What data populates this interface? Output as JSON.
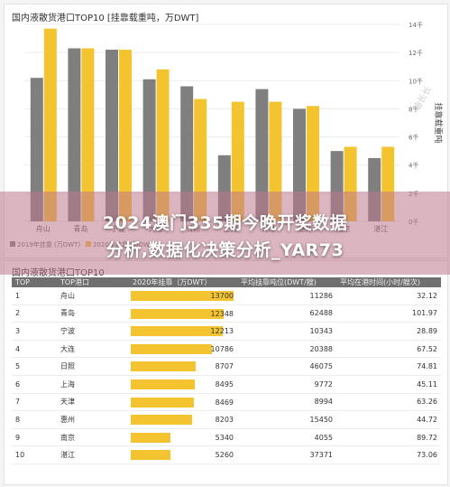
{
  "chart_data": [
    {
      "type": "bar",
      "title": "国内液散货港口TOP10 [挂靠载重吨，万DWT]",
      "categories": [
        "舟山",
        "青岛",
        "宁波",
        "大连",
        "日照",
        "上海",
        "天津",
        "惠州",
        "南京",
        "湛江"
      ],
      "series": [
        {
          "name": "2019年挂靠 (万DWT)",
          "color": "#7f7f7f",
          "values": [
            10.2,
            12.3,
            12.2,
            10.1,
            9.6,
            4.7,
            9.4,
            8.0,
            5.0,
            4.5
          ]
        },
        {
          "name": "2020年挂靠 (万DWT)",
          "color": "#f4c430",
          "values": [
            13.7,
            12.3,
            12.2,
            10.8,
            8.7,
            8.5,
            8.5,
            8.2,
            5.3,
            5.3
          ]
        }
      ],
      "yticks": [
        "0千",
        "2千",
        "4千",
        "6千",
        "8千",
        "10千",
        "12千",
        "14千"
      ],
      "ylim": [
        0,
        14
      ],
      "ylabel": "挂靠载重吨",
      "legend": "bottom-left"
    },
    {
      "type": "table",
      "title": "国内液散货港口TOP10",
      "columns": [
        "TOP",
        "TOP港口",
        "2020年挂靠（万DWT）",
        "平均挂靠吨位(DWT/艘)",
        "平均在港时间(小时/艘次)"
      ],
      "bar_max": 13700,
      "rows": [
        {
          "rank": "1",
          "port": "舟山",
          "dwt": 13700,
          "dwt_label": "13700",
          "avg_tonnage": "11286",
          "avg_hours": "32.12"
        },
        {
          "rank": "2",
          "port": "青岛",
          "dwt": 12348,
          "dwt_label": "12348",
          "avg_tonnage": "62488",
          "avg_hours": "101.97"
        },
        {
          "rank": "3",
          "port": "宁波",
          "dwt": 12213,
          "dwt_label": "12213",
          "avg_tonnage": "10343",
          "avg_hours": "28.89"
        },
        {
          "rank": "4",
          "port": "大连",
          "dwt": 10786,
          "dwt_label": "10786",
          "avg_tonnage": "20388",
          "avg_hours": "67.52"
        },
        {
          "rank": "5",
          "port": "日照",
          "dwt": 8707,
          "dwt_label": "8707",
          "avg_tonnage": "46075",
          "avg_hours": "74.81"
        },
        {
          "rank": "6",
          "port": "上海",
          "dwt": 8495,
          "dwt_label": "8495",
          "avg_tonnage": "9772",
          "avg_hours": "45.11"
        },
        {
          "rank": "7",
          "port": "天津",
          "dwt": 8469,
          "dwt_label": "8469",
          "avg_tonnage": "8994",
          "avg_hours": "63.26"
        },
        {
          "rank": "8",
          "port": "惠州",
          "dwt": 8203,
          "dwt_label": "8203",
          "avg_tonnage": "15450",
          "avg_hours": "44.72"
        },
        {
          "rank": "9",
          "port": "南京",
          "dwt": 5340,
          "dwt_label": "5340",
          "avg_tonnage": "4055",
          "avg_hours": "89.72"
        },
        {
          "rank": "10",
          "port": "湛江",
          "dwt": 5260,
          "dwt_label": "5260",
          "avg_tonnage": "37371",
          "avg_hours": "73.06"
        }
      ]
    }
  ],
  "overlay": {
    "line1": "2024澳门335期今晚开奖数据",
    "line2": "分析,数据化决策分析_YAR73"
  },
  "watermark": "油长长"
}
